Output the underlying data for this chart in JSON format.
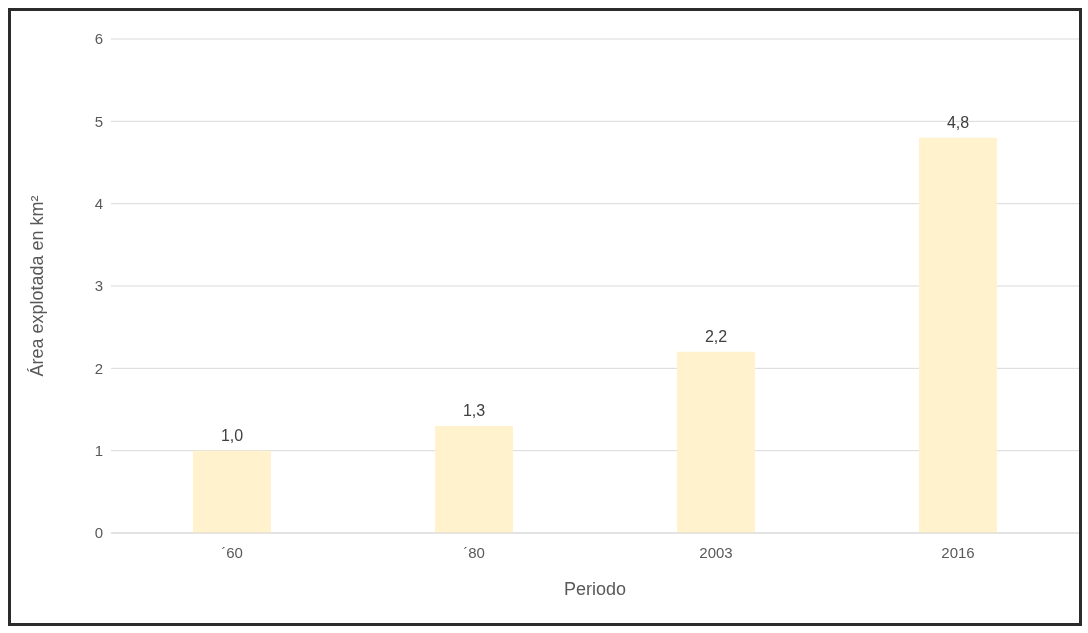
{
  "chart_data": {
    "type": "bar",
    "xlabel": "Periodo",
    "ylabel": "Área explotada en km²",
    "categories": [
      "´60",
      "´80",
      "2003",
      "2016"
    ],
    "values": [
      1.0,
      1.3,
      2.2,
      4.8
    ],
    "value_labels": [
      "1,0",
      "1,3",
      "2,2",
      "4,8"
    ],
    "color": "#fff2cc",
    "ylim": [
      0,
      6
    ],
    "yticks": [
      0,
      1,
      2,
      3,
      4,
      5,
      6
    ],
    "grid": "y"
  }
}
